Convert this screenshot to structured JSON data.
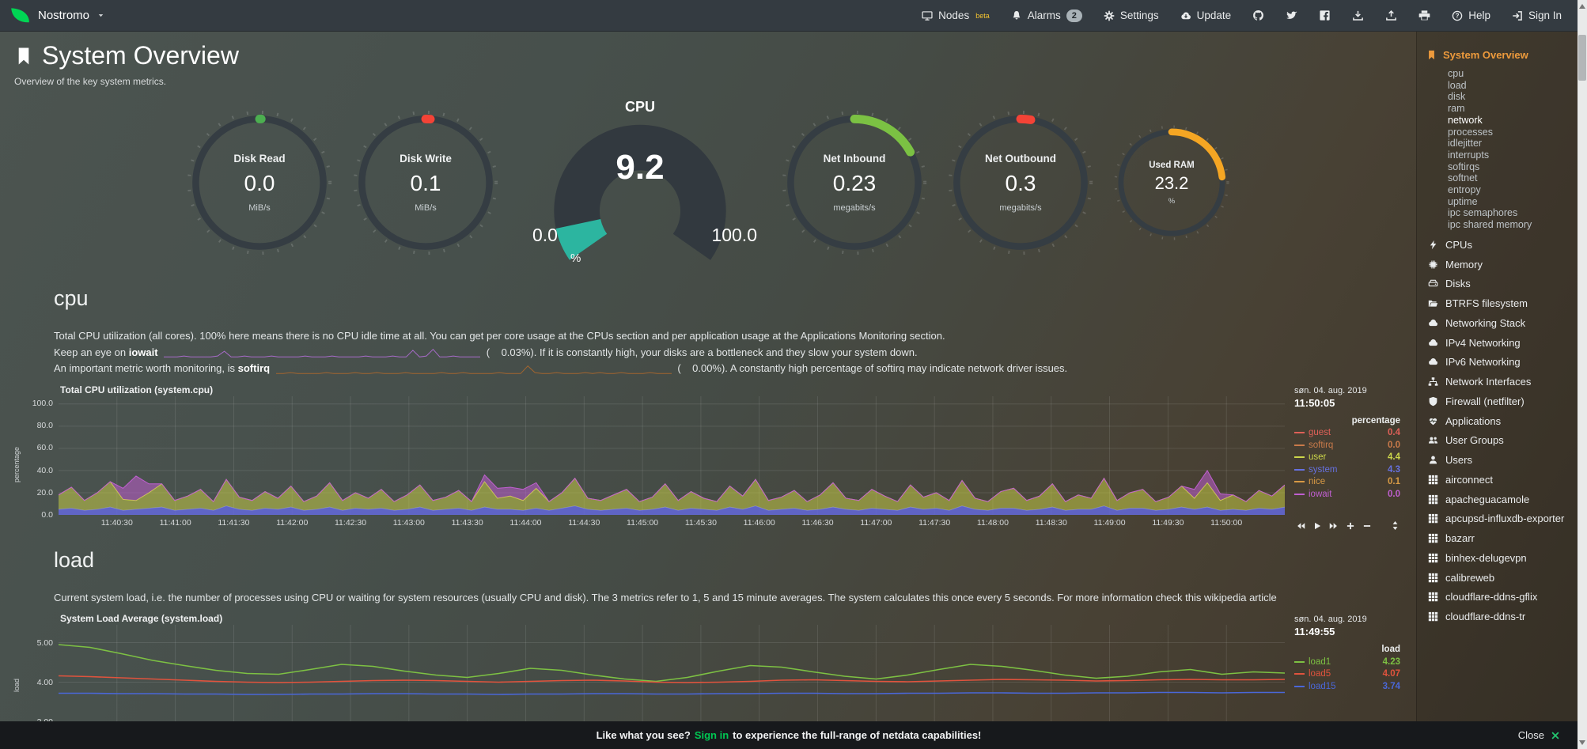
{
  "nav": {
    "hostname": "Nostromo",
    "nodes_label": "Nodes",
    "nodes_beta": "beta",
    "alarms_label": "Alarms",
    "alarms_count": "2",
    "settings_label": "Settings",
    "update_label": "Update",
    "help_label": "Help",
    "signin_label": "Sign In"
  },
  "header": {
    "title": "System Overview",
    "subtitle": "Overview of the key system metrics."
  },
  "gauges": {
    "rings": [
      {
        "label": "Disk Read",
        "value": "0.0",
        "unit": "MiB/s",
        "color": "#4caf50",
        "pct": 0.4,
        "size": "normal"
      },
      {
        "label": "Disk Write",
        "value": "0.1",
        "unit": "MiB/s",
        "color": "#f44336",
        "pct": 1.2,
        "size": "normal"
      },
      {
        "label": "Net Inbound",
        "value": "0.23",
        "unit": "megabits/s",
        "color": "#7bc143",
        "pct": 17,
        "size": "normal"
      },
      {
        "label": "Net Outbound",
        "value": "0.3",
        "unit": "megabits/s",
        "color": "#f44336",
        "pct": 2.6,
        "size": "normal"
      },
      {
        "label": "Used RAM",
        "value": "23.2",
        "unit": "%",
        "color": "#f5a623",
        "pct": 23.2,
        "size": "small"
      }
    ],
    "cpu": {
      "title": "CPU",
      "value": "9.2",
      "min": "0.0",
      "max": "100.0",
      "unit": "%",
      "pct": 9.2,
      "color": "#2cb5a0"
    }
  },
  "cpu_section": {
    "heading": "cpu",
    "para": "Total CPU utilization (all cores). 100% here means there is no CPU idle time at all. You can get per core usage at the CPUs section and per application usage at the Applications Monitoring section.",
    "line2_pre": "Keep an eye on ",
    "line2_bold": "iowait",
    "line2_post": "(    0.03%). If it is constantly high, your disks are a bottleneck and they slow your system down.",
    "line3_pre": "An important metric worth monitoring, is ",
    "line3_bold": "softirq",
    "line3_post": "(    0.00%). A constantly high percentage of softirq may indicate network driver issues.",
    "iowait_spark_color": "#a86bc9",
    "softirq_spark_color": "#a3652f",
    "iowait_spark": [
      1,
      1,
      1,
      2,
      1,
      1,
      1,
      1,
      2,
      7,
      1,
      1,
      2,
      1,
      1,
      1,
      2,
      1,
      1,
      1,
      1,
      2,
      1,
      1,
      1,
      2,
      1,
      1,
      1,
      1,
      2,
      1,
      1,
      1,
      2,
      1,
      1,
      8,
      1,
      2,
      9,
      1,
      1,
      2,
      1,
      1,
      1,
      1
    ],
    "softirq_spark": [
      1,
      1,
      2,
      1,
      1,
      1,
      1,
      2,
      1,
      1,
      1,
      2,
      1,
      1,
      2,
      1,
      1,
      1,
      2,
      1,
      1,
      1,
      1,
      2,
      1,
      1,
      2,
      1,
      1,
      1,
      1,
      2,
      1,
      1,
      1,
      9,
      2,
      1,
      1,
      2,
      1,
      1,
      1,
      2,
      1,
      2,
      1,
      1,
      2,
      1,
      1,
      1,
      2,
      1,
      1,
      1
    ]
  },
  "load_section": {
    "heading": "load",
    "para": "Current system load, i.e. the number of processes using CPU or waiting for system resources (usually CPU and disk). The 3 metrics refer to 1, 5 and 15 minute averages. The system calculates this once every 5 seconds. For more information check this wikipedia article"
  },
  "chart_data": [
    {
      "type": "area",
      "title": "Total CPU utilization (system.cpu)",
      "ylabel": "percentage",
      "timestamp": "søn. 04. aug. 2019",
      "time": "11:50:05",
      "legend_header": "percentage",
      "ylim": [
        0,
        107
      ],
      "vgrid": 20,
      "yticks": [
        {
          "v": 100,
          "label": "100.0"
        },
        {
          "v": 80,
          "label": "80.0"
        },
        {
          "v": 60,
          "label": "60.0"
        },
        {
          "v": 40,
          "label": "40.0"
        },
        {
          "v": 20,
          "label": "20.0"
        },
        {
          "v": 0,
          "label": "0.0"
        }
      ],
      "x_labels": [
        "11:40:30",
        "11:41:00",
        "11:41:30",
        "11:42:00",
        "11:42:30",
        "11:43:00",
        "11:43:30",
        "11:44:00",
        "11:44:30",
        "11:45:00",
        "11:45:30",
        "11:46:00",
        "11:46:30",
        "11:47:00",
        "11:47:30",
        "11:48:00",
        "11:48:30",
        "11:49:00",
        "11:49:30",
        "11:50:00"
      ],
      "legend": [
        {
          "name": "guest",
          "value": "0.4",
          "color": "#df6058"
        },
        {
          "name": "softirq",
          "value": "0.0",
          "color": "#c97a4a"
        },
        {
          "name": "user",
          "value": "4.4",
          "color": "#ccd64a"
        },
        {
          "name": "system",
          "value": "4.3",
          "color": "#6671e0"
        },
        {
          "name": "nice",
          "value": "0.1",
          "color": "#d89a45"
        },
        {
          "name": "iowait",
          "value": "0.0",
          "color": "#c05fd0"
        }
      ],
      "series": [
        {
          "name": "system",
          "type": "area",
          "stack": true,
          "color": "#6b6fe0",
          "fill": "rgba(100,105,220,0.85)",
          "values": [
            5,
            6,
            4,
            5,
            7,
            4,
            5,
            6,
            7,
            4,
            5,
            6,
            4,
            8,
            5,
            4,
            6,
            5,
            7,
            4,
            5,
            7,
            4,
            6,
            5,
            6,
            4,
            5,
            7,
            4,
            5,
            6,
            4,
            7,
            5,
            5,
            4,
            6,
            4,
            6,
            8,
            5,
            4,
            5,
            6,
            4,
            5,
            7,
            4,
            6,
            5,
            4,
            7,
            5,
            8,
            4,
            5,
            6,
            4,
            5,
            7,
            5,
            4,
            6,
            5,
            4,
            7,
            5,
            6,
            4,
            8,
            5,
            4,
            6,
            6,
            4,
            5,
            7,
            4,
            5,
            5,
            8,
            4,
            6,
            6,
            4,
            5,
            7,
            5,
            7,
            4,
            5,
            4,
            6,
            5,
            7
          ]
        },
        {
          "name": "user",
          "type": "area",
          "stack": true,
          "color": "#d4db41",
          "fill": "rgba(210,216,70,0.5)",
          "values": [
            13,
            19,
            9,
            15,
            23,
            10,
            8,
            14,
            21,
            9,
            12,
            17,
            8,
            24,
            11,
            9,
            15,
            10,
            19,
            8,
            12,
            22,
            9,
            14,
            10,
            17,
            8,
            13,
            20,
            9,
            11,
            16,
            8,
            23,
            10,
            12,
            9,
            18,
            8,
            14,
            25,
            10,
            9,
            13,
            17,
            8,
            11,
            21,
            9,
            15,
            10,
            8,
            19,
            12,
            24,
            9,
            11,
            16,
            8,
            13,
            22,
            10,
            9,
            17,
            12,
            8,
            20,
            11,
            14,
            9,
            23,
            10,
            8,
            15,
            18,
            9,
            12,
            21,
            8,
            13,
            10,
            25,
            9,
            14,
            17,
            8,
            11,
            19,
            10,
            22,
            9,
            13,
            8,
            16,
            12,
            20
          ]
        },
        {
          "name": "iowait",
          "type": "area",
          "stack": true,
          "color": "#c05fd0",
          "fill": "rgba(192,95,208,0.55)",
          "values": [
            0,
            0,
            0,
            0,
            0,
            10,
            22,
            8,
            0,
            0,
            0,
            0,
            0,
            0,
            0,
            0,
            0,
            0,
            0,
            0,
            0,
            0,
            0,
            0,
            0,
            0,
            0,
            0,
            0,
            0,
            0,
            0,
            0,
            6,
            9,
            8,
            10,
            5,
            0,
            0,
            0,
            0,
            0,
            0,
            0,
            0,
            0,
            0,
            0,
            0,
            0,
            0,
            0,
            0,
            0,
            0,
            0,
            0,
            0,
            0,
            0,
            0,
            0,
            0,
            0,
            0,
            0,
            0,
            0,
            0,
            0,
            0,
            0,
            0,
            0,
            0,
            0,
            0,
            0,
            0,
            0,
            0,
            0,
            0,
            0,
            0,
            0,
            0,
            8,
            11,
            6,
            0,
            0,
            0,
            0,
            0
          ]
        }
      ]
    },
    {
      "type": "line",
      "title": "System Load Average (system.load)",
      "ylabel": "load",
      "timestamp": "søn. 04. aug. 2019",
      "time": "11:49:55",
      "legend_header": "load",
      "ylim": [
        2.85,
        5.45
      ],
      "vgrid": 20,
      "yticks": [
        {
          "v": 5,
          "label": "5.00"
        },
        {
          "v": 4,
          "label": "4.00"
        },
        {
          "v": 3,
          "label": "3.00"
        }
      ],
      "x_labels": [],
      "legend": [
        {
          "name": "load1",
          "value": "4.23",
          "color": "#7dc143"
        },
        {
          "name": "load5",
          "value": "4.07",
          "color": "#e0533d"
        },
        {
          "name": "load15",
          "value": "3.74",
          "color": "#4a67d8"
        }
      ],
      "series": [
        {
          "name": "load1",
          "type": "line",
          "color": "#7dc143",
          "values": [
            4.95,
            4.88,
            4.72,
            4.55,
            4.42,
            4.3,
            4.22,
            4.2,
            4.32,
            4.45,
            4.4,
            4.28,
            4.18,
            4.12,
            4.22,
            4.35,
            4.3,
            4.18,
            4.08,
            4.02,
            4.12,
            4.28,
            4.42,
            4.38,
            4.26,
            4.15,
            4.08,
            4.18,
            4.32,
            4.45,
            4.4,
            4.3,
            4.18,
            4.1,
            4.15,
            4.26,
            4.32,
            4.2,
            4.26,
            4.23
          ]
        },
        {
          "name": "load5",
          "type": "line",
          "color": "#e0533d",
          "values": [
            4.16,
            4.14,
            4.11,
            4.08,
            4.05,
            4.02,
            4.0,
            3.99,
            4.0,
            4.02,
            4.04,
            4.05,
            4.04,
            4.02,
            4.0,
            4.02,
            4.04,
            4.05,
            4.03,
            4.0,
            3.99,
            4.0,
            4.02,
            4.05,
            4.06,
            4.04,
            4.02,
            4.01,
            4.03,
            4.05,
            4.07,
            4.06,
            4.05,
            4.03,
            4.04,
            4.06,
            4.07,
            4.06,
            4.06,
            4.07
          ]
        },
        {
          "name": "load15",
          "type": "line",
          "color": "#4a67d8",
          "values": [
            3.72,
            3.72,
            3.71,
            3.71,
            3.7,
            3.7,
            3.69,
            3.69,
            3.7,
            3.7,
            3.71,
            3.71,
            3.7,
            3.7,
            3.69,
            3.7,
            3.7,
            3.71,
            3.71,
            3.7,
            3.7,
            3.71,
            3.71,
            3.72,
            3.72,
            3.71,
            3.71,
            3.72,
            3.72,
            3.73,
            3.73,
            3.72,
            3.72,
            3.73,
            3.73,
            3.74,
            3.74,
            3.73,
            3.74,
            3.74
          ]
        }
      ]
    }
  ],
  "toolbar": {
    "icons": [
      "backward",
      "play",
      "forward",
      "plus",
      "minus"
    ]
  },
  "sidebar": {
    "active_label": "System Overview",
    "subitems": [
      {
        "label": "cpu"
      },
      {
        "label": "load"
      },
      {
        "label": "disk"
      },
      {
        "label": "ram"
      },
      {
        "label": "network",
        "hl": true
      },
      {
        "label": "processes"
      },
      {
        "label": "idlejitter"
      },
      {
        "label": "interrupts"
      },
      {
        "label": "softirqs"
      },
      {
        "label": "softnet"
      },
      {
        "label": "entropy"
      },
      {
        "label": "uptime"
      },
      {
        "label": "ipc semaphores"
      },
      {
        "label": "ipc shared memory"
      }
    ],
    "categories": [
      {
        "icon": "bolt",
        "label": "CPUs"
      },
      {
        "icon": "microchip",
        "label": "Memory"
      },
      {
        "icon": "hdd",
        "label": "Disks"
      },
      {
        "icon": "folder-open",
        "label": "BTRFS filesystem"
      },
      {
        "icon": "cloud",
        "label": "Networking Stack"
      },
      {
        "icon": "cloud",
        "label": "IPv4 Networking"
      },
      {
        "icon": "cloud",
        "label": "IPv6 Networking"
      },
      {
        "icon": "sitemap",
        "label": "Network Interfaces"
      },
      {
        "icon": "shield",
        "label": "Firewall (netfilter)"
      },
      {
        "icon": "heartbeat",
        "label": "Applications"
      },
      {
        "icon": "users",
        "label": "User Groups"
      },
      {
        "icon": "user",
        "label": "Users"
      },
      {
        "icon": "grid",
        "label": "airconnect"
      },
      {
        "icon": "grid",
        "label": "apacheguacamole"
      },
      {
        "icon": "grid",
        "label": "apcupsd-influxdb-exporter"
      },
      {
        "icon": "grid",
        "label": "bazarr"
      },
      {
        "icon": "grid",
        "label": "binhex-delugevpn"
      },
      {
        "icon": "grid",
        "label": "calibreweb"
      },
      {
        "icon": "grid",
        "label": "cloudflare-ddns-gflix"
      },
      {
        "icon": "grid",
        "label": "cloudflare-ddns-tr"
      }
    ]
  },
  "footer": {
    "prefix": "Like what you see?",
    "signin": "Sign in",
    "suffix": "to experience the full-range of netdata capabilities!",
    "close_label": "Close"
  }
}
